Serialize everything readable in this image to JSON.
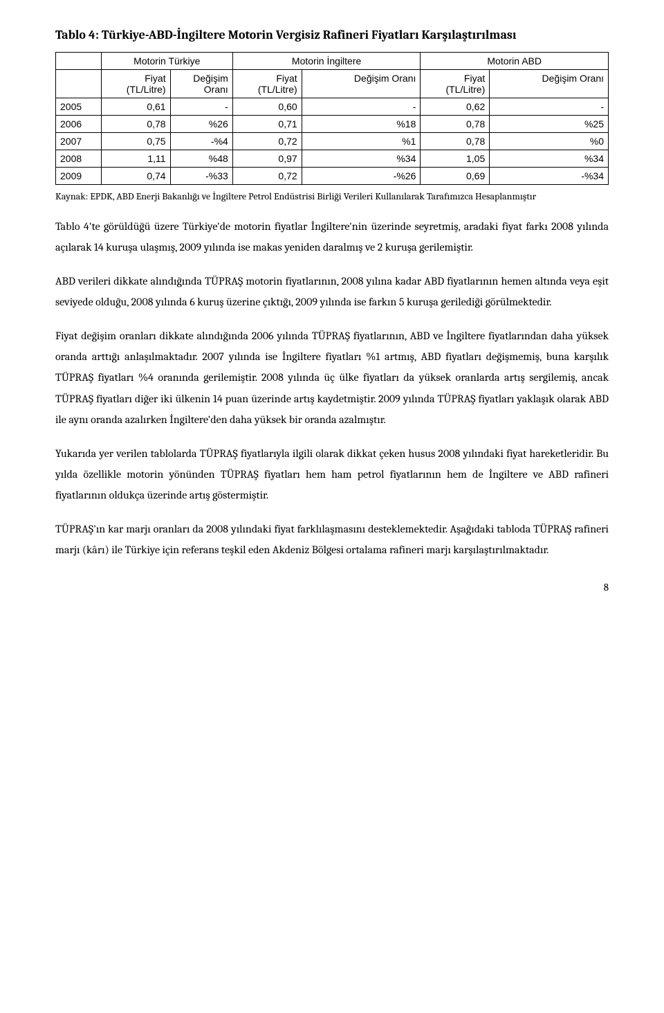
{
  "title": "Tablo 4: Türkiye-ABD-İngiltere Motorin Vergisiz Rafineri Fiyatları Karşılaştırılması",
  "table": {
    "group_headers": {
      "tr": "Motorin Türkiye",
      "uk": "Motorin İngiltere",
      "us": "Motorin ABD"
    },
    "sub_headers": {
      "year": "",
      "tr_price": "Fiyat\n(TL/Litre)",
      "tr_change": "Değişim\nOranı",
      "uk_price": "Fiyat\n(TL/Litre)",
      "uk_change": "Değişim Oranı",
      "us_price": "Fiyat\n(TL/Litre)",
      "us_change": "Değişim Oranı"
    },
    "rows": [
      {
        "year": "2005",
        "tr_price": "0,61",
        "tr_change": "-",
        "uk_price": "0,60",
        "uk_change": "-",
        "us_price": "0,62",
        "us_change": "-"
      },
      {
        "year": "2006",
        "tr_price": "0,78",
        "tr_change": "%26",
        "uk_price": "0,71",
        "uk_change": "%18",
        "us_price": "0,78",
        "us_change": "%25"
      },
      {
        "year": "2007",
        "tr_price": "0,75",
        "tr_change": "-%4",
        "uk_price": "0,72",
        "uk_change": "%1",
        "us_price": "0,78",
        "us_change": "%0"
      },
      {
        "year": "2008",
        "tr_price": "1,11",
        "tr_change": "%48",
        "uk_price": "0,97",
        "uk_change": "%34",
        "us_price": "1,05",
        "us_change": "%34"
      },
      {
        "year": "2009",
        "tr_price": "0,74",
        "tr_change": "-%33",
        "uk_price": "0,72",
        "uk_change": "-%26",
        "us_price": "0,69",
        "us_change": "-%34"
      }
    ]
  },
  "caption": "Kaynak: EPDK, ABD Enerji Bakanlığı ve İngiltere Petrol Endüstrisi Birliği Verileri Kullanılarak Tarafımızca Hesaplanmıştır",
  "paragraphs": [
    "Tablo 4'te görüldüğü üzere Türkiye'de motorin fiyatlar İngiltere'nin üzerinde seyretmiş, aradaki fiyat farkı 2008 yılında açılarak 14 kuruşa ulaşmış, 2009 yılında ise makas yeniden daralmış ve 2 kuruşa gerilemiştir.",
    "ABD verileri dikkate alındığında TÜPRAŞ motorin fiyatlarının, 2008 yılına kadar ABD fiyatlarının hemen altında veya eşit seviyede olduğu, 2008 yılında 6 kuruş üzerine çıktığı, 2009 yılında ise farkın 5 kuruşa gerilediği görülmektedir.",
    "Fiyat değişim oranları dikkate alındığında 2006 yılında TÜPRAŞ fiyatlarının, ABD ve İngiltere fiyatlarından daha yüksek oranda arttığı anlaşılmaktadır. 2007 yılında ise İngiltere fiyatları %1 artmış, ABD fiyatları değişmemiş, buna karşılık TÜPRAŞ fiyatları %4 oranında gerilemiştir. 2008 yılında üç ülke fiyatları da yüksek oranlarda artış sergilemiş, ancak TÜPRAŞ fiyatları diğer iki ülkenin 14 puan üzerinde artış kaydetmiştir. 2009 yılında TÜPRAŞ fiyatları yaklaşık olarak ABD ile aynı oranda azalırken İngiltere'den daha yüksek bir oranda azalmıştır.",
    "Yukarıda yer verilen tablolarda TÜPRAŞ fiyatlarıyla ilgili olarak dikkat çeken husus 2008 yılındaki fiyat hareketleridir. Bu yılda özellikle motorin yönünden TÜPRAŞ fiyatları hem ham petrol fiyatlarının hem de İngiltere ve ABD rafineri fiyatlarının oldukça üzerinde artış göstermiştir.",
    "TÜPRAŞ'ın kar marjı oranları da 2008 yılındaki fiyat farklılaşmasını desteklemektedir. Aşağıdaki tabloda TÜPRAŞ rafineri marjı (kârı) ile Türkiye için referans teşkil eden Akdeniz Bölgesi ortalama rafineri marjı karşılaştırılmaktadır."
  ],
  "pagenum": "8"
}
